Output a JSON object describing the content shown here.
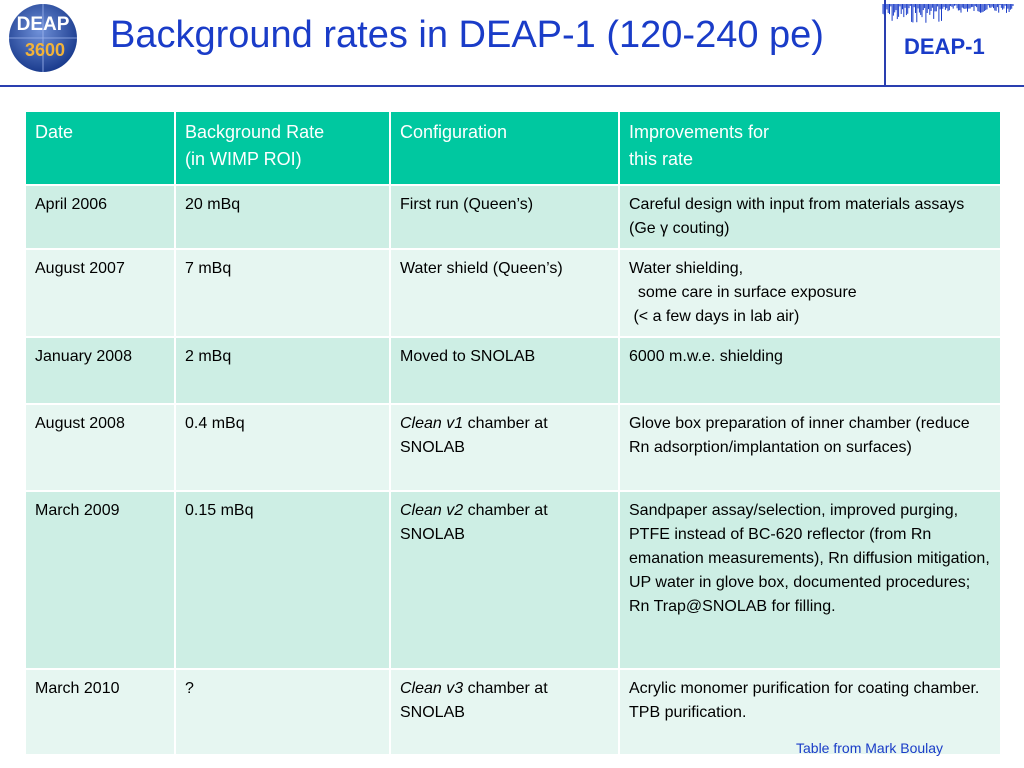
{
  "logo": {
    "letters": "DEAP",
    "number": "3600"
  },
  "header": {
    "title": "Background rates in DEAP-1 (120-240 pe)",
    "brand": "DEAP-1"
  },
  "table": {
    "headers": [
      "Date",
      "Background Rate\n(in WIMP ROI)",
      "Configuration",
      "Improvements for\nthis rate"
    ],
    "rows": [
      {
        "date": "April 2006",
        "rate": "20 mBq",
        "config_italic": "",
        "config_rest": "First run (Queen’s)",
        "improvement": "Careful design with input from materials assays (Ge γ couting)"
      },
      {
        "date": "August 2007",
        "rate": "7 mBq",
        "config_italic": "",
        "config_rest": "Water shield (Queen’s)",
        "improvement": "Water shielding,\n  some care in surface exposure\n (< a few days in lab air)"
      },
      {
        "date": "January 2008",
        "rate": "2 mBq",
        "config_italic": "",
        "config_rest": "Moved to SNOLAB",
        "improvement": "6000 m.w.e. shielding"
      },
      {
        "date": "August 2008",
        "rate": "0.4 mBq",
        "config_italic": "Clean v1",
        "config_rest": " chamber at SNOLAB",
        "improvement": "Glove box preparation of inner chamber (reduce Rn adsorption/implantation on surfaces)"
      },
      {
        "date": "March 2009",
        "rate": "0.15 mBq",
        "config_italic": "Clean v2",
        "config_rest": " chamber at SNOLAB",
        "improvement": "Sandpaper assay/selection, improved purging, PTFE instead of BC-620 reflector (from Rn emanation measurements), Rn diffusion mitigation, UP water in glove box, documented procedures;\nRn Trap@SNOLAB for filling."
      },
      {
        "date": "March 2010",
        "rate": "?",
        "config_italic": "Clean v3",
        "config_rest": " chamber at SNOLAB",
        "improvement": "Acrylic monomer purification for coating chamber.  TPB purification."
      }
    ]
  },
  "footer": {
    "credit": "Table from Mark Boulay"
  },
  "colors": {
    "accent_blue": "#1a3cc8",
    "header_teal": "#00c8a0",
    "row_dark": "#cdeee4",
    "row_light": "#e6f6f1"
  }
}
